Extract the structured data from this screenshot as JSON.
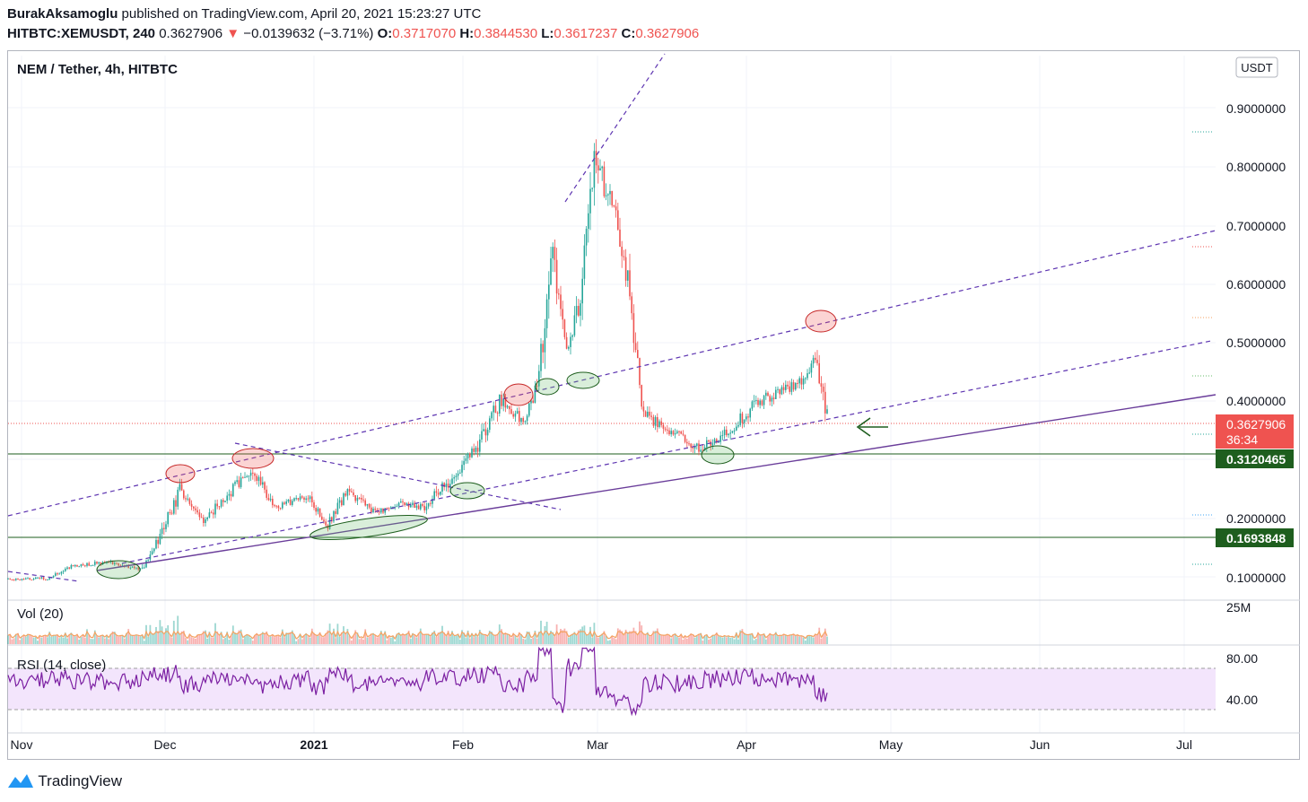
{
  "header": {
    "author": "BurakAksamoglu",
    "published_text": " published on TradingView.com, April 20, 2021 15:23:27 UTC",
    "symbol": "HITBTC:XEMUSDT, 240",
    "last": " 0.3627906 ",
    "change_arrow": "▼",
    "change": " −0.0139632 (−3.71%) ",
    "o_label": "O:",
    "o_value": "0.3717070",
    "h_label": " H:",
    "h_value": "0.3844530",
    "l_label": " L:",
    "l_value": "0.3617237",
    "c_label": " C:",
    "c_value": "0.3627906"
  },
  "pane_titles": {
    "main": "NEM / Tether, 4h, HITBTC",
    "volume": "Vol (20)",
    "rsi": "RSI (14, close)"
  },
  "currency_label": "USDT",
  "price_axis_ticks": [
    "0.9000000",
    "0.8000000",
    "0.7000000",
    "0.6000000",
    "0.5000000",
    "0.4000000",
    "0.2000000",
    "0.1000000"
  ],
  "volume_axis_ticks": [
    "25M"
  ],
  "rsi_axis_ticks": [
    "80.00",
    "40.00"
  ],
  "time_axis_ticks": [
    "Nov",
    "Dec",
    "2021",
    "Feb",
    "Mar",
    "Apr",
    "May",
    "Jun",
    "Jul"
  ],
  "price_badges": {
    "last_price": "0.3627906",
    "countdown": "36:34",
    "support_upper": "0.3120465",
    "support_lower": "0.1693848"
  },
  "footer": {
    "brand": "TradingView"
  },
  "colors": {
    "up": "#26a69a",
    "down": "#ef5350",
    "trendline": "#6a3d9a",
    "support": "#1e5e1e",
    "rsi": "#7b1fa2",
    "rsi_band": "#f3e5fc"
  },
  "chart_data": {
    "type": "candlestick",
    "symbol": "XEMUSDT",
    "interval": "240",
    "y_range": [
      0.09,
      0.98
    ],
    "x_range": [
      "2020-10-30",
      "2021-07-10"
    ],
    "close_path": [
      {
        "date": "2020-10-30",
        "value": 0.098
      },
      {
        "date": "2020-11-08",
        "value": 0.1
      },
      {
        "date": "2020-11-12",
        "value": 0.12
      },
      {
        "date": "2020-11-20",
        "value": 0.128
      },
      {
        "date": "2020-11-27",
        "value": 0.115
      },
      {
        "date": "2020-11-30",
        "value": 0.16
      },
      {
        "date": "2020-12-05",
        "value": 0.25
      },
      {
        "date": "2020-12-10",
        "value": 0.2
      },
      {
        "date": "2020-12-15",
        "value": 0.24
      },
      {
        "date": "2020-12-20",
        "value": 0.29
      },
      {
        "date": "2020-12-25",
        "value": 0.22
      },
      {
        "date": "2021-01-01",
        "value": 0.24
      },
      {
        "date": "2021-01-05",
        "value": 0.19
      },
      {
        "date": "2021-01-09",
        "value": 0.25
      },
      {
        "date": "2021-01-15",
        "value": 0.21
      },
      {
        "date": "2021-01-20",
        "value": 0.23
      },
      {
        "date": "2021-01-25",
        "value": 0.22
      },
      {
        "date": "2021-01-31",
        "value": 0.27
      },
      {
        "date": "2021-02-05",
        "value": 0.32
      },
      {
        "date": "2021-02-10",
        "value": 0.4
      },
      {
        "date": "2021-02-15",
        "value": 0.37
      },
      {
        "date": "2021-02-18",
        "value": 0.43
      },
      {
        "date": "2021-02-21",
        "value": 0.65
      },
      {
        "date": "2021-02-24",
        "value": 0.48
      },
      {
        "date": "2021-02-27",
        "value": 0.58
      },
      {
        "date": "2021-03-02",
        "value": 0.82
      },
      {
        "date": "2021-03-06",
        "value": 0.72
      },
      {
        "date": "2021-03-09",
        "value": 0.6
      },
      {
        "date": "2021-03-12",
        "value": 0.38
      },
      {
        "date": "2021-03-18",
        "value": 0.35
      },
      {
        "date": "2021-03-24",
        "value": 0.32
      },
      {
        "date": "2021-03-30",
        "value": 0.35
      },
      {
        "date": "2021-04-05",
        "value": 0.4
      },
      {
        "date": "2021-04-10",
        "value": 0.42
      },
      {
        "date": "2021-04-15",
        "value": 0.44
      },
      {
        "date": "2021-04-17",
        "value": 0.47
      },
      {
        "date": "2021-04-20",
        "value": 0.3627906
      }
    ],
    "horizontal_levels": [
      0.3120465,
      0.1693848
    ],
    "last_price_line": 0.3627906,
    "volume_axis_max": "25M",
    "rsi": {
      "upper_band": 70,
      "lower_band": 30,
      "last": 40
    }
  }
}
